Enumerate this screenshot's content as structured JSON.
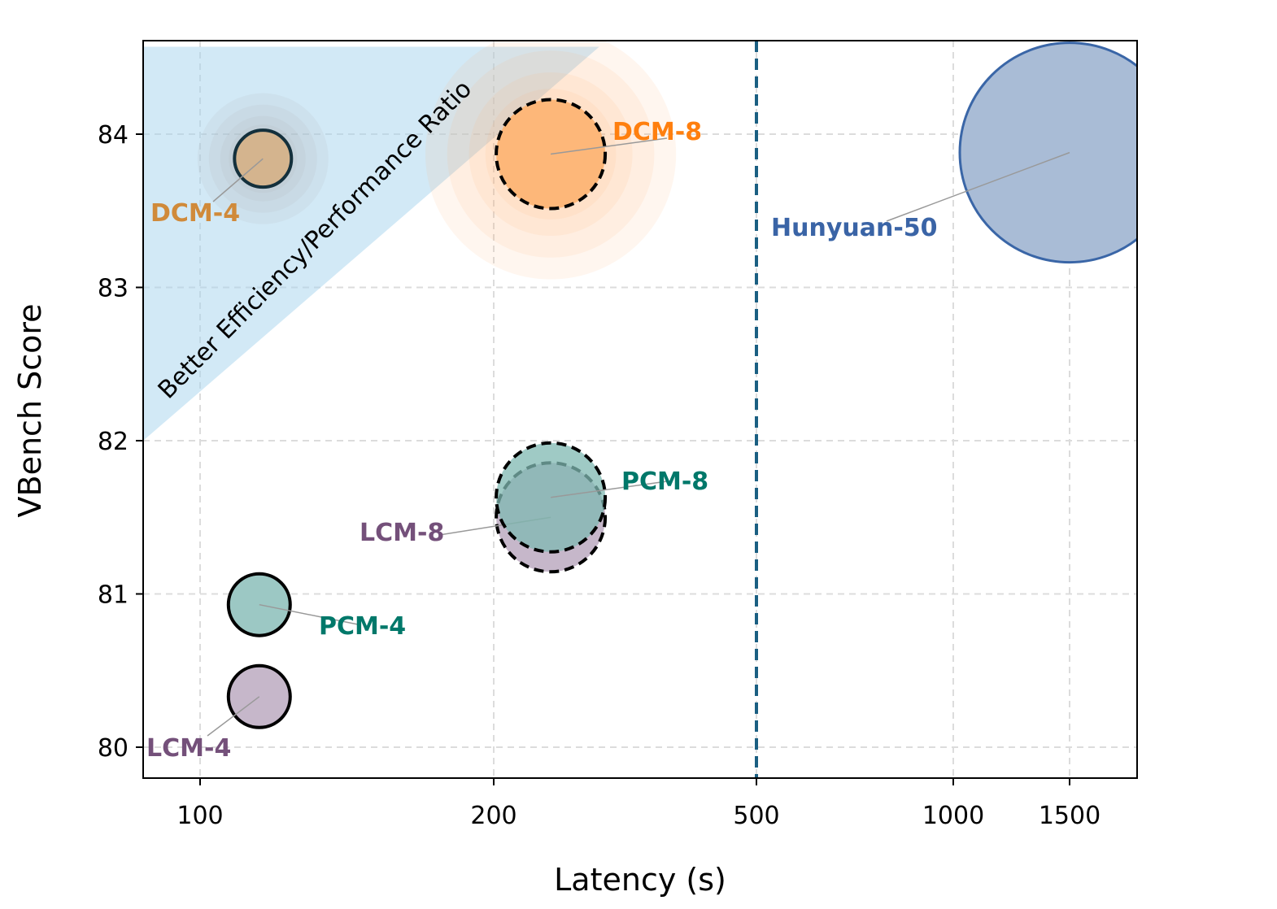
{
  "chart_data": {
    "type": "scatter",
    "title": "",
    "xlabel": "Latency (s)",
    "ylabel": "VBench Score",
    "xscale": "log",
    "xlim": [
      87,
      1900
    ],
    "ylim": [
      79.8,
      84.6
    ],
    "xticks": [
      100,
      200,
      500,
      1000,
      1500
    ],
    "yticks": [
      80,
      81,
      82,
      83,
      84
    ],
    "grid": true,
    "reference_line": {
      "x": 500,
      "style": "dashed",
      "color": "#1b5f82"
    },
    "region": {
      "label": "Better Efficiency/Performance Ratio",
      "color": "#a6d4ee",
      "vertices": [
        [
          87,
          84.57
        ],
        [
          289,
          84.57
        ],
        [
          87,
          82.0
        ]
      ]
    },
    "points": [
      {
        "name": "DCM-4",
        "x": 116,
        "y": 83.84,
        "fill": "#d4b48e",
        "edge": "#14303c",
        "label_color": "#d08a3a",
        "dashed": false,
        "halo": "#b0b0b0"
      },
      {
        "name": "DCM-8",
        "x": 244,
        "y": 83.87,
        "fill": "#fdb779",
        "edge": "#000000",
        "label_color": "#ff7f0e",
        "dashed": true,
        "halo": "#fdb779"
      },
      {
        "name": "Hunyuan-50",
        "x": 1500,
        "y": 83.88,
        "fill": "#a9bcd6",
        "edge": "#3a66a7",
        "label_color": "#3a64a6",
        "dashed": false
      },
      {
        "name": "LCM-8",
        "x": 244,
        "y": 81.5,
        "fill": "#c6b7ca",
        "edge": "#000000",
        "label_color": "#74507a",
        "dashed": true
      },
      {
        "name": "PCM-8",
        "x": 244,
        "y": 81.63,
        "fill": "#7fb8b2",
        "edge": "#000000",
        "label_color": "#00786a",
        "dashed": true
      },
      {
        "name": "PCM-4",
        "x": 115,
        "y": 80.93,
        "fill": "#9cc8c4",
        "edge": "#000000",
        "label_color": "#00786a",
        "dashed": false
      },
      {
        "name": "LCM-4",
        "x": 115,
        "y": 80.33,
        "fill": "#c6b7ca",
        "edge": "#000000",
        "label_color": "#74507a",
        "dashed": false
      }
    ]
  }
}
